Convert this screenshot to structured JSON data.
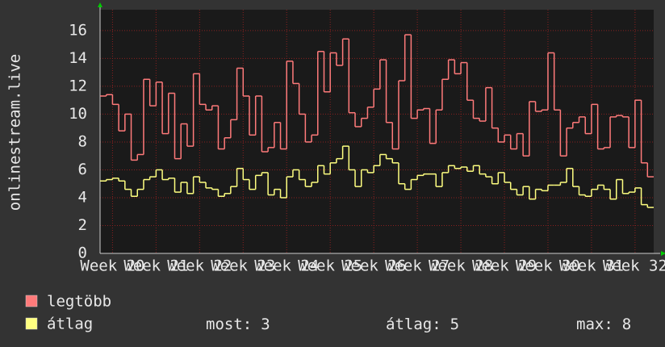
{
  "chart_data": {
    "type": "line",
    "y_label": "onlinestream.live",
    "ylim": [
      0,
      17.5
    ],
    "yticks": [
      0,
      2,
      4,
      6,
      8,
      10,
      12,
      14,
      16
    ],
    "xlim": [
      0,
      89
    ],
    "xticks": [
      {
        "value": 2,
        "label": "Week 20"
      },
      {
        "value": 9,
        "label": "Week 21"
      },
      {
        "value": 16,
        "label": "Week 22"
      },
      {
        "value": 23,
        "label": "Week 23"
      },
      {
        "value": 30,
        "label": "Week 24"
      },
      {
        "value": 37,
        "label": "Week 25"
      },
      {
        "value": 44,
        "label": "Week 26"
      },
      {
        "value": 51,
        "label": "Week 27"
      },
      {
        "value": 58,
        "label": "Week 28"
      },
      {
        "value": 65,
        "label": "Week 29"
      },
      {
        "value": 72,
        "label": "Week 30"
      },
      {
        "value": 79,
        "label": "Week 31"
      },
      {
        "value": 86,
        "label": "Week 32"
      }
    ],
    "grid": true,
    "series": [
      {
        "name": "legtöbb",
        "color": "#ff7a7a",
        "values": [
          11.3,
          11.4,
          10.7,
          8.8,
          10,
          6.7,
          7.1,
          12.5,
          10.6,
          12.3,
          8.6,
          11.5,
          6.8,
          9.3,
          7.7,
          12.9,
          10.7,
          10.3,
          10.6,
          7.5,
          8.3,
          9.6,
          13.3,
          11.3,
          8.5,
          11.3,
          7.3,
          7.6,
          9.4,
          7.5,
          13.8,
          12.2,
          10,
          8,
          8.5,
          14.5,
          11.6,
          14.4,
          13.5,
          15.4,
          10.1,
          9.1,
          9.7,
          10.5,
          11.8,
          13.9,
          9.4,
          7.5,
          12.4,
          15.7,
          9.7,
          10.3,
          10.4,
          7.9,
          10.3,
          12.5,
          13.9,
          12.9,
          13.7,
          11,
          9.7,
          9.5,
          11.9,
          9,
          8,
          8.5,
          7.5,
          8.6,
          7,
          10.9,
          10.2,
          10.3,
          14.4,
          10.3,
          7,
          9,
          9.4,
          9.8,
          8.6,
          10.7,
          7.5,
          7.6,
          9.8,
          9.9,
          9.8,
          7.6,
          11,
          6.5,
          5.5
        ]
      },
      {
        "name": "átlag",
        "color": "#ffff80",
        "values": [
          5.2,
          5.3,
          5.4,
          5.2,
          4.6,
          4.1,
          4.6,
          5.3,
          5.5,
          6,
          5.3,
          5.4,
          4.4,
          5.1,
          4.3,
          5.5,
          5.1,
          4.7,
          4.6,
          4.1,
          4.3,
          4.8,
          6.1,
          5.3,
          4.6,
          5.6,
          5.8,
          4.2,
          4.6,
          4,
          5.5,
          6,
          5.3,
          4.8,
          5.1,
          6.3,
          5.7,
          6.5,
          6.8,
          7.7,
          6,
          4.8,
          6,
          5.8,
          6.3,
          7.1,
          6.8,
          6.5,
          5,
          4.6,
          5.3,
          5.6,
          5.7,
          5.7,
          4.8,
          5.8,
          6.3,
          6.1,
          6.2,
          5.9,
          6.3,
          5.7,
          5.5,
          5,
          5.8,
          5.1,
          4.6,
          4.2,
          4.8,
          3.9,
          4.6,
          4.5,
          4.9,
          4.9,
          5.1,
          6.1,
          4.8,
          4.2,
          4.1,
          4.6,
          4.9,
          4.6,
          3.9,
          5.3,
          4.3,
          4.4,
          4.7,
          3.5,
          3.3
        ]
      }
    ],
    "stats": [
      {
        "label": "most:",
        "value": 3
      },
      {
        "label": "átlag:",
        "value": 5
      },
      {
        "label": "max:",
        "value": 8
      }
    ]
  }
}
